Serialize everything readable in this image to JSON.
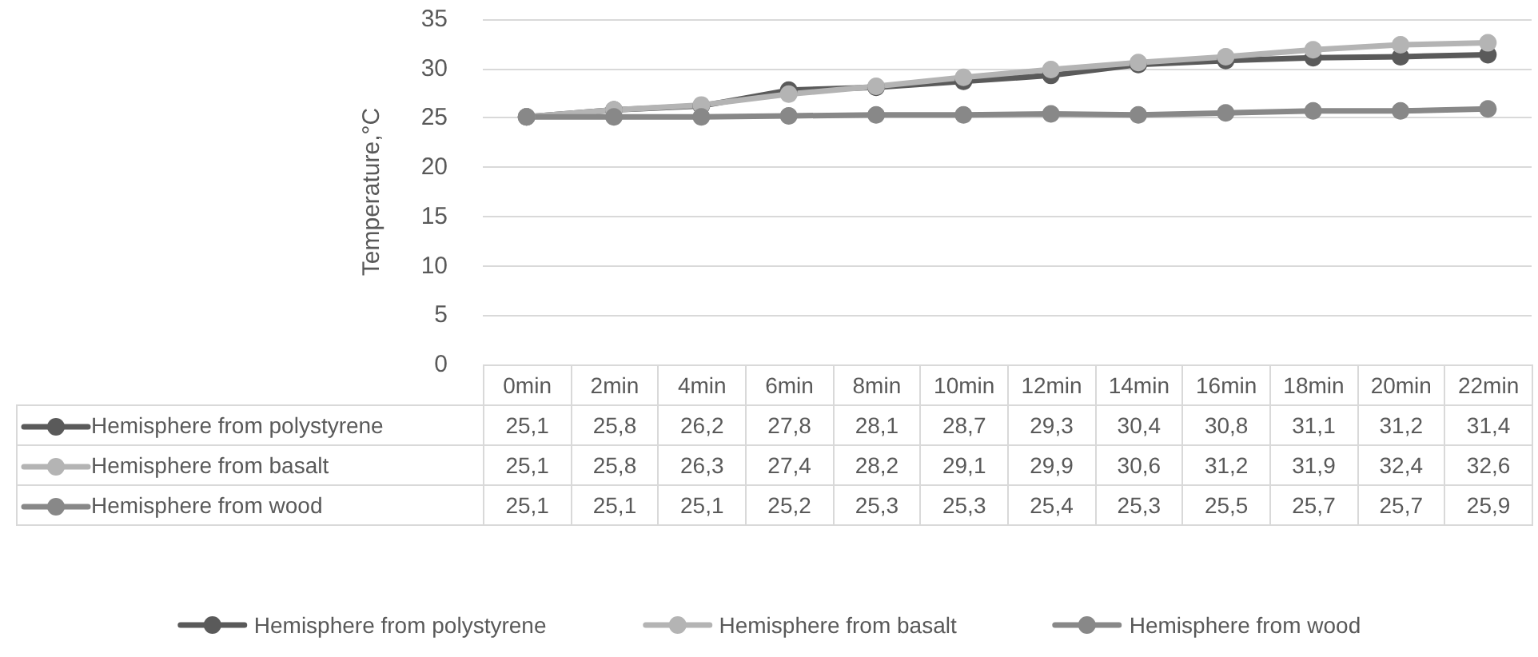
{
  "chart_data": {
    "type": "line",
    "ylabel": "Temperature,°C",
    "categories": [
      "0min",
      "2min",
      "4min",
      "6min",
      "8min",
      "10min",
      "12min",
      "14min",
      "16min",
      "18min",
      "20min",
      "22min"
    ],
    "series": [
      {
        "name": "Hemisphere from polystyrene",
        "color": "#5a5a5a",
        "values": [
          25.1,
          25.8,
          26.2,
          27.8,
          28.1,
          28.7,
          29.3,
          30.4,
          30.8,
          31.1,
          31.2,
          31.4
        ],
        "value_labels": [
          "25,1",
          "25,8",
          "26,2",
          "27,8",
          "28,1",
          "28,7",
          "29,3",
          "30,4",
          "30,8",
          "31,1",
          "31,2",
          "31,4"
        ]
      },
      {
        "name": "Hemisphere from basalt",
        "color": "#b4b4b4",
        "values": [
          25.1,
          25.8,
          26.3,
          27.4,
          28.2,
          29.1,
          29.9,
          30.6,
          31.2,
          31.9,
          32.4,
          32.6
        ],
        "value_labels": [
          "25,1",
          "25,8",
          "26,3",
          "27,4",
          "28,2",
          "29,1",
          "29,9",
          "30,6",
          "31,2",
          "31,9",
          "32,4",
          "32,6"
        ]
      },
      {
        "name": "Hemisphere from wood",
        "color": "#888888",
        "values": [
          25.1,
          25.1,
          25.1,
          25.2,
          25.3,
          25.3,
          25.4,
          25.3,
          25.5,
          25.7,
          25.7,
          25.9
        ],
        "value_labels": [
          "25,1",
          "25,1",
          "25,1",
          "25,2",
          "25,3",
          "25,3",
          "25,4",
          "25,3",
          "25,5",
          "25,7",
          "25,7",
          "25,9"
        ]
      }
    ],
    "ylim": [
      0,
      35
    ],
    "yticks": [
      0,
      5,
      10,
      15,
      20,
      25,
      30,
      35
    ],
    "grid": "y",
    "legend": "bottom",
    "marker": "circle",
    "line_style": "solid"
  }
}
